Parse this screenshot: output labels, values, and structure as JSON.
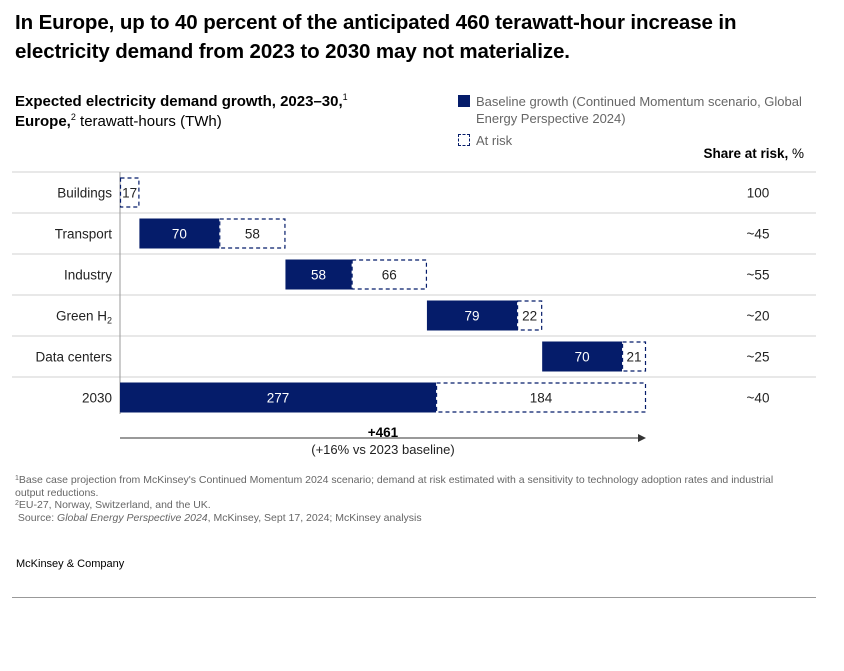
{
  "headline": "In Europe, up to 40 percent of the anticipated 460 terawatt-hour increase in electricity demand from 2023 to 2030 may not materialize.",
  "subtitle": {
    "line1": "Expected electricity demand growth, 2023–30,",
    "line1_sup": "1",
    "line2_bold": "Europe,",
    "line2_sup": "2",
    "line2_rest": " terawatt-hours (TWh)"
  },
  "legend": {
    "baseline": "Baseline growth (Continued Momentum scenario, Global Energy Perspective 2024)",
    "at_risk": "At risk"
  },
  "share_header": {
    "bold": "Share at risk,",
    "unit": " %"
  },
  "chart_data": {
    "type": "bar",
    "subtype": "waterfall-stacked",
    "categories": [
      "Buildings",
      "Transport",
      "Industry",
      "Green H",
      "Data centers",
      "2030"
    ],
    "category_subscripts": [
      "",
      "",
      "",
      "2",
      "",
      ""
    ],
    "series": [
      {
        "name": "Baseline growth (Continued Momentum scenario, Global Energy Perspective 2024)",
        "values": [
          0,
          70,
          58,
          79,
          70,
          277
        ]
      },
      {
        "name": "At risk",
        "values": [
          17,
          58,
          66,
          22,
          21,
          184
        ]
      }
    ],
    "baseline_labels": [
      "",
      "70",
      "58",
      "79",
      "70",
      "277"
    ],
    "at_risk_labels": [
      "17",
      "58",
      "66",
      "22",
      "21",
      "184"
    ],
    "share_at_risk_labels": [
      "100",
      "~45",
      "~55",
      "~20",
      "~25",
      "~40"
    ],
    "total_label": "+461",
    "total_sublabel": "(+16% vs 2023 baseline)",
    "xlim": [
      0,
      461
    ],
    "colors": {
      "baseline": "#051c6a",
      "at_risk_border": "#051c6a",
      "grid": "#d0d0d0"
    }
  },
  "footnotes": {
    "fn1_sup": "1",
    "fn1": "Base case projection from McKinsey's Continued Momentum 2024 scenario; demand at risk estimated with a sensitivity to technology adoption rates and industrial output reductions.",
    "fn2_sup": "2",
    "fn2": "EU-27, Norway, Switzerland, and the UK.",
    "source_prefix": "Source: ",
    "source_italic": "Global Energy Perspective 2024",
    "source_rest": ", McKinsey, Sept 17, 2024; McKinsey analysis"
  },
  "brand": "McKinsey & Company"
}
